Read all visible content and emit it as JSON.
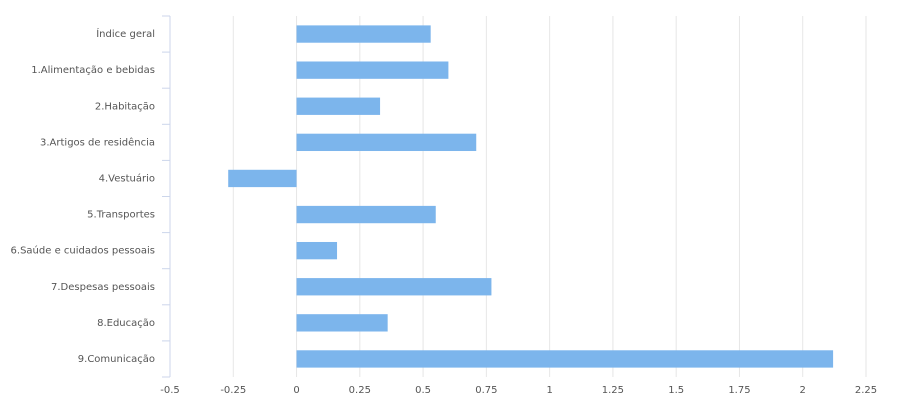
{
  "chart_data": {
    "type": "hbar",
    "categories": [
      "Índice geral",
      "1.Alimentação e bebidas",
      "2.Habitação",
      "3.Artigos de residência",
      "4.Vestuário",
      "5.Transportes",
      "6.Saúde e cuidados pessoais",
      "7.Despesas pessoais",
      "8.Educação",
      "9.Comunicação"
    ],
    "values": [
      0.53,
      0.6,
      0.33,
      0.71,
      -0.27,
      0.55,
      0.16,
      0.77,
      0.36,
      2.12
    ],
    "color": "#7cb5ec",
    "xlim": [
      -0.5,
      2.25
    ],
    "xticks": [
      -0.5,
      -0.25,
      0,
      0.25,
      0.5,
      0.75,
      1,
      1.25,
      1.5,
      1.75,
      2,
      2.25
    ],
    "grid": true
  }
}
